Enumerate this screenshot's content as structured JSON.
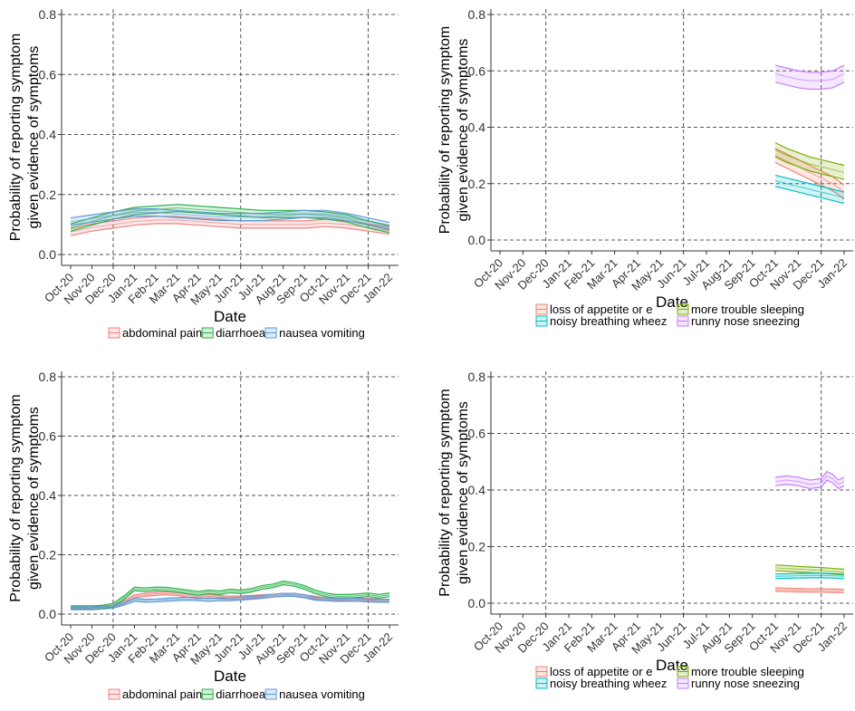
{
  "colors": {
    "abdominal_pain": "#f08080",
    "diarrhoea": "#2ab24a",
    "nausea_vomiting": "#5b9bd5",
    "loss_of_appetite": "#f08070",
    "more_trouble_sleeping": "#7cae00",
    "noisy_breathing": "#00bfc4",
    "runny_nose": "#c77cff",
    "axis": "#333333",
    "grid": "#555555"
  },
  "chart_data": [
    {
      "type": "line",
      "position": "top-left",
      "xlabel": "Date",
      "ylabel_lines": [
        "Probability of reporting symptom",
        "given evidence of symptoms"
      ],
      "ylim": [
        0,
        0.8
      ],
      "yticks": [
        "0.0",
        "0.2",
        "0.4",
        "0.6",
        "0.8"
      ],
      "x_categories": [
        "Oct-20",
        "Nov-20",
        "Dec-20",
        "Jan-21",
        "Feb-21",
        "Mar-21",
        "Apr-21",
        "May-21",
        "Jun-21",
        "Jul-21",
        "Aug-21",
        "Sep-21",
        "Oct-21",
        "Nov-21",
        "Dec-21",
        "Jan-22"
      ],
      "vlines": [
        "Dec-20",
        "Jun-21",
        "Dec-21"
      ],
      "grid": "dashed",
      "legend": [
        "abdominal pain",
        "diarrhoea",
        "nausea vomiting"
      ],
      "series": [
        {
          "name": "abdominal pain",
          "color_key": "abdominal_pain",
          "x": [
            0,
            1,
            2,
            3,
            4,
            5,
            6,
            7,
            8,
            9,
            10,
            11,
            12,
            13,
            14,
            15
          ],
          "y": [
            0.075,
            0.09,
            0.1,
            0.11,
            0.115,
            0.115,
            0.11,
            0.105,
            0.1,
            0.1,
            0.1,
            0.1,
            0.105,
            0.1,
            0.09,
            0.08
          ],
          "band": 0.012
        },
        {
          "name": "diarrhoea",
          "color_key": "diarrhoea",
          "x": [
            0,
            1,
            2,
            3,
            4,
            5,
            6,
            7,
            8,
            9,
            10,
            11,
            12,
            13,
            14,
            15
          ],
          "y": [
            0.09,
            0.11,
            0.13,
            0.145,
            0.15,
            0.155,
            0.15,
            0.145,
            0.14,
            0.135,
            0.135,
            0.135,
            0.13,
            0.12,
            0.1,
            0.085
          ],
          "band": 0.012
        },
        {
          "name": "nausea vomiting",
          "color_key": "nausea_vomiting",
          "x": [
            0,
            1,
            2,
            3,
            4,
            5,
            6,
            7,
            8,
            9,
            10,
            11,
            12,
            13,
            14,
            15
          ],
          "y": [
            0.11,
            0.12,
            0.13,
            0.14,
            0.14,
            0.135,
            0.13,
            0.125,
            0.125,
            0.125,
            0.13,
            0.135,
            0.135,
            0.125,
            0.11,
            0.095
          ],
          "band": 0.012
        }
      ]
    },
    {
      "type": "line",
      "position": "top-right",
      "xlabel": "Date",
      "ylabel_lines": [
        "Probability of reporting symptom",
        "given evidence of symptoms"
      ],
      "ylim": [
        0,
        0.8
      ],
      "yticks": [
        "0.0",
        "0.2",
        "0.4",
        "0.6",
        "0.8"
      ],
      "x_categories": [
        "Oct-20",
        "Nov-20",
        "Dec-20",
        "Jan-21",
        "Feb-21",
        "Mar-21",
        "Apr-21",
        "May-21",
        "Jun-21",
        "Jul-21",
        "Aug-21",
        "Sep-21",
        "Oct-21",
        "Nov-21",
        "Dec-21",
        "Jan-22"
      ],
      "vlines": [
        "Dec-20",
        "Jun-21",
        "Dec-21"
      ],
      "grid": "dashed",
      "legend": [
        "loss of appetite or e",
        "more trouble sleeping",
        "noisy breathing wheez",
        "runny nose sneezing"
      ],
      "series": [
        {
          "name": "loss of appetite or e",
          "color_key": "loss_of_appetite",
          "x": [
            12,
            12.5,
            13,
            13.5,
            14,
            14.5,
            15
          ],
          "y": [
            0.3,
            0.28,
            0.26,
            0.24,
            0.22,
            0.2,
            0.17
          ],
          "band": 0.025
        },
        {
          "name": "more trouble sleeping",
          "color_key": "more_trouble_sleeping",
          "x": [
            12,
            12.5,
            13,
            13.5,
            14,
            14.5,
            15
          ],
          "y": [
            0.32,
            0.3,
            0.285,
            0.27,
            0.26,
            0.25,
            0.24
          ],
          "band": 0.025
        },
        {
          "name": "noisy breathing wheez",
          "color_key": "noisy_breathing",
          "x": [
            12,
            12.5,
            13,
            13.5,
            14,
            14.5,
            15
          ],
          "y": [
            0.21,
            0.2,
            0.19,
            0.18,
            0.17,
            0.16,
            0.15
          ],
          "band": 0.02
        },
        {
          "name": "runny nose sneezing",
          "color_key": "runny_nose",
          "x": [
            12,
            12.5,
            13,
            13.5,
            14,
            14.5,
            15
          ],
          "y": [
            0.59,
            0.58,
            0.57,
            0.565,
            0.565,
            0.57,
            0.59
          ],
          "band": 0.03
        }
      ]
    },
    {
      "type": "line",
      "position": "bottom-left",
      "xlabel": "Date",
      "ylabel_lines": [
        "Probability of reporting symptom",
        "given evidence of symptoms"
      ],
      "ylim": [
        0,
        0.8
      ],
      "yticks": [
        "0.0",
        "0.2",
        "0.4",
        "0.6",
        "0.8"
      ],
      "x_categories": [
        "Oct-20",
        "Nov-20",
        "Dec-20",
        "Jan-21",
        "Feb-21",
        "Mar-21",
        "Apr-21",
        "May-21",
        "Jun-21",
        "Jul-21",
        "Aug-21",
        "Sep-21",
        "Oct-21",
        "Nov-21",
        "Dec-21",
        "Jan-22"
      ],
      "vlines": [
        "Dec-20",
        "Jun-21",
        "Dec-21"
      ],
      "grid": "dashed",
      "legend": [
        "abdominal pain",
        "diarrhoea",
        "nausea vomiting"
      ],
      "series": [
        {
          "name": "abdominal pain",
          "color_key": "abdominal_pain",
          "x": [
            0,
            0.5,
            1,
            1.5,
            2,
            2.5,
            3,
            3.5,
            4,
            4.5,
            5,
            5.5,
            6,
            6.5,
            7,
            7.5,
            8,
            8.5,
            9,
            9.5,
            10,
            10.5,
            11,
            11.5,
            12,
            12.5,
            13,
            13.5,
            14,
            14.5,
            15
          ],
          "y": [
            0.022,
            0.02,
            0.02,
            0.022,
            0.025,
            0.04,
            0.06,
            0.065,
            0.068,
            0.07,
            0.068,
            0.062,
            0.058,
            0.06,
            0.058,
            0.055,
            0.056,
            0.058,
            0.06,
            0.062,
            0.065,
            0.065,
            0.06,
            0.055,
            0.05,
            0.05,
            0.05,
            0.048,
            0.048,
            0.046,
            0.045
          ],
          "band": 0.005
        },
        {
          "name": "diarrhoea",
          "color_key": "diarrhoea",
          "x": [
            0,
            0.5,
            1,
            1.5,
            2,
            2.5,
            3,
            3.5,
            4,
            4.5,
            5,
            5.5,
            6,
            6.5,
            7,
            7.5,
            8,
            8.5,
            9,
            9.5,
            10,
            10.5,
            11,
            11.5,
            12,
            12.5,
            13,
            13.5,
            14,
            14.5,
            15
          ],
          "y": [
            0.022,
            0.022,
            0.022,
            0.024,
            0.03,
            0.055,
            0.085,
            0.082,
            0.085,
            0.084,
            0.08,
            0.075,
            0.07,
            0.075,
            0.072,
            0.078,
            0.075,
            0.08,
            0.09,
            0.095,
            0.105,
            0.1,
            0.09,
            0.075,
            0.065,
            0.06,
            0.06,
            0.062,
            0.065,
            0.06,
            0.065
          ],
          "band": 0.006
        },
        {
          "name": "nausea vomiting",
          "color_key": "nausea_vomiting",
          "x": [
            0,
            0.5,
            1,
            1.5,
            2,
            2.5,
            3,
            3.5,
            4,
            4.5,
            5,
            5.5,
            6,
            6.5,
            7,
            7.5,
            8,
            8.5,
            9,
            9.5,
            10,
            10.5,
            11,
            11.5,
            12,
            12.5,
            13,
            13.5,
            14,
            14.5,
            15
          ],
          "y": [
            0.02,
            0.02,
            0.02,
            0.022,
            0.025,
            0.035,
            0.048,
            0.045,
            0.046,
            0.048,
            0.05,
            0.052,
            0.05,
            0.048,
            0.05,
            0.05,
            0.052,
            0.055,
            0.058,
            0.062,
            0.065,
            0.065,
            0.06,
            0.052,
            0.05,
            0.048,
            0.048,
            0.048,
            0.046,
            0.045,
            0.045
          ],
          "band": 0.005
        }
      ]
    },
    {
      "type": "line",
      "position": "bottom-right",
      "xlabel": "Date",
      "ylabel_lines": [
        "Probability of reporting symptom",
        "given evidence of symptoms"
      ],
      "ylim": [
        0,
        0.8
      ],
      "yticks": [
        "0.0",
        "0.2",
        "0.4",
        "0.6",
        "0.8"
      ],
      "x_categories": [
        "Oct-20",
        "Nov-20",
        "Dec-20",
        "Jan-21",
        "Feb-21",
        "Mar-21",
        "Apr-21",
        "May-21",
        "Jun-21",
        "Jul-21",
        "Aug-21",
        "Sep-21",
        "Oct-21",
        "Nov-21",
        "Dec-21",
        "Jan-22"
      ],
      "vlines": [
        "Dec-20",
        "Jun-21",
        "Dec-21"
      ],
      "grid": "dashed",
      "legend": [
        "loss of appetite or e",
        "more trouble sleeping",
        "noisy breathing wheez",
        "runny nose sneezing"
      ],
      "series": [
        {
          "name": "loss of appetite or e",
          "color_key": "loss_of_appetite",
          "x": [
            12,
            12.5,
            13,
            13.5,
            14,
            14.5,
            15
          ],
          "y": [
            0.048,
            0.047,
            0.046,
            0.045,
            0.045,
            0.044,
            0.043
          ],
          "band": 0.006
        },
        {
          "name": "more trouble sleeping",
          "color_key": "more_trouble_sleeping",
          "x": [
            12,
            12.5,
            13,
            13.5,
            14,
            14.5,
            15
          ],
          "y": [
            0.125,
            0.123,
            0.12,
            0.118,
            0.116,
            0.113,
            0.11
          ],
          "band": 0.01
        },
        {
          "name": "noisy breathing wheez",
          "color_key": "noisy_breathing",
          "x": [
            12,
            12.5,
            13,
            13.5,
            14,
            14.5,
            15
          ],
          "y": [
            0.095,
            0.096,
            0.097,
            0.098,
            0.098,
            0.097,
            0.095
          ],
          "band": 0.008
        },
        {
          "name": "runny nose sneezing",
          "color_key": "runny_nose",
          "x": [
            12,
            12.5,
            13,
            13.5,
            14,
            14.25,
            14.5,
            14.75,
            15
          ],
          "y": [
            0.43,
            0.435,
            0.43,
            0.42,
            0.425,
            0.45,
            0.44,
            0.42,
            0.43
          ],
          "band": 0.015
        }
      ]
    }
  ]
}
